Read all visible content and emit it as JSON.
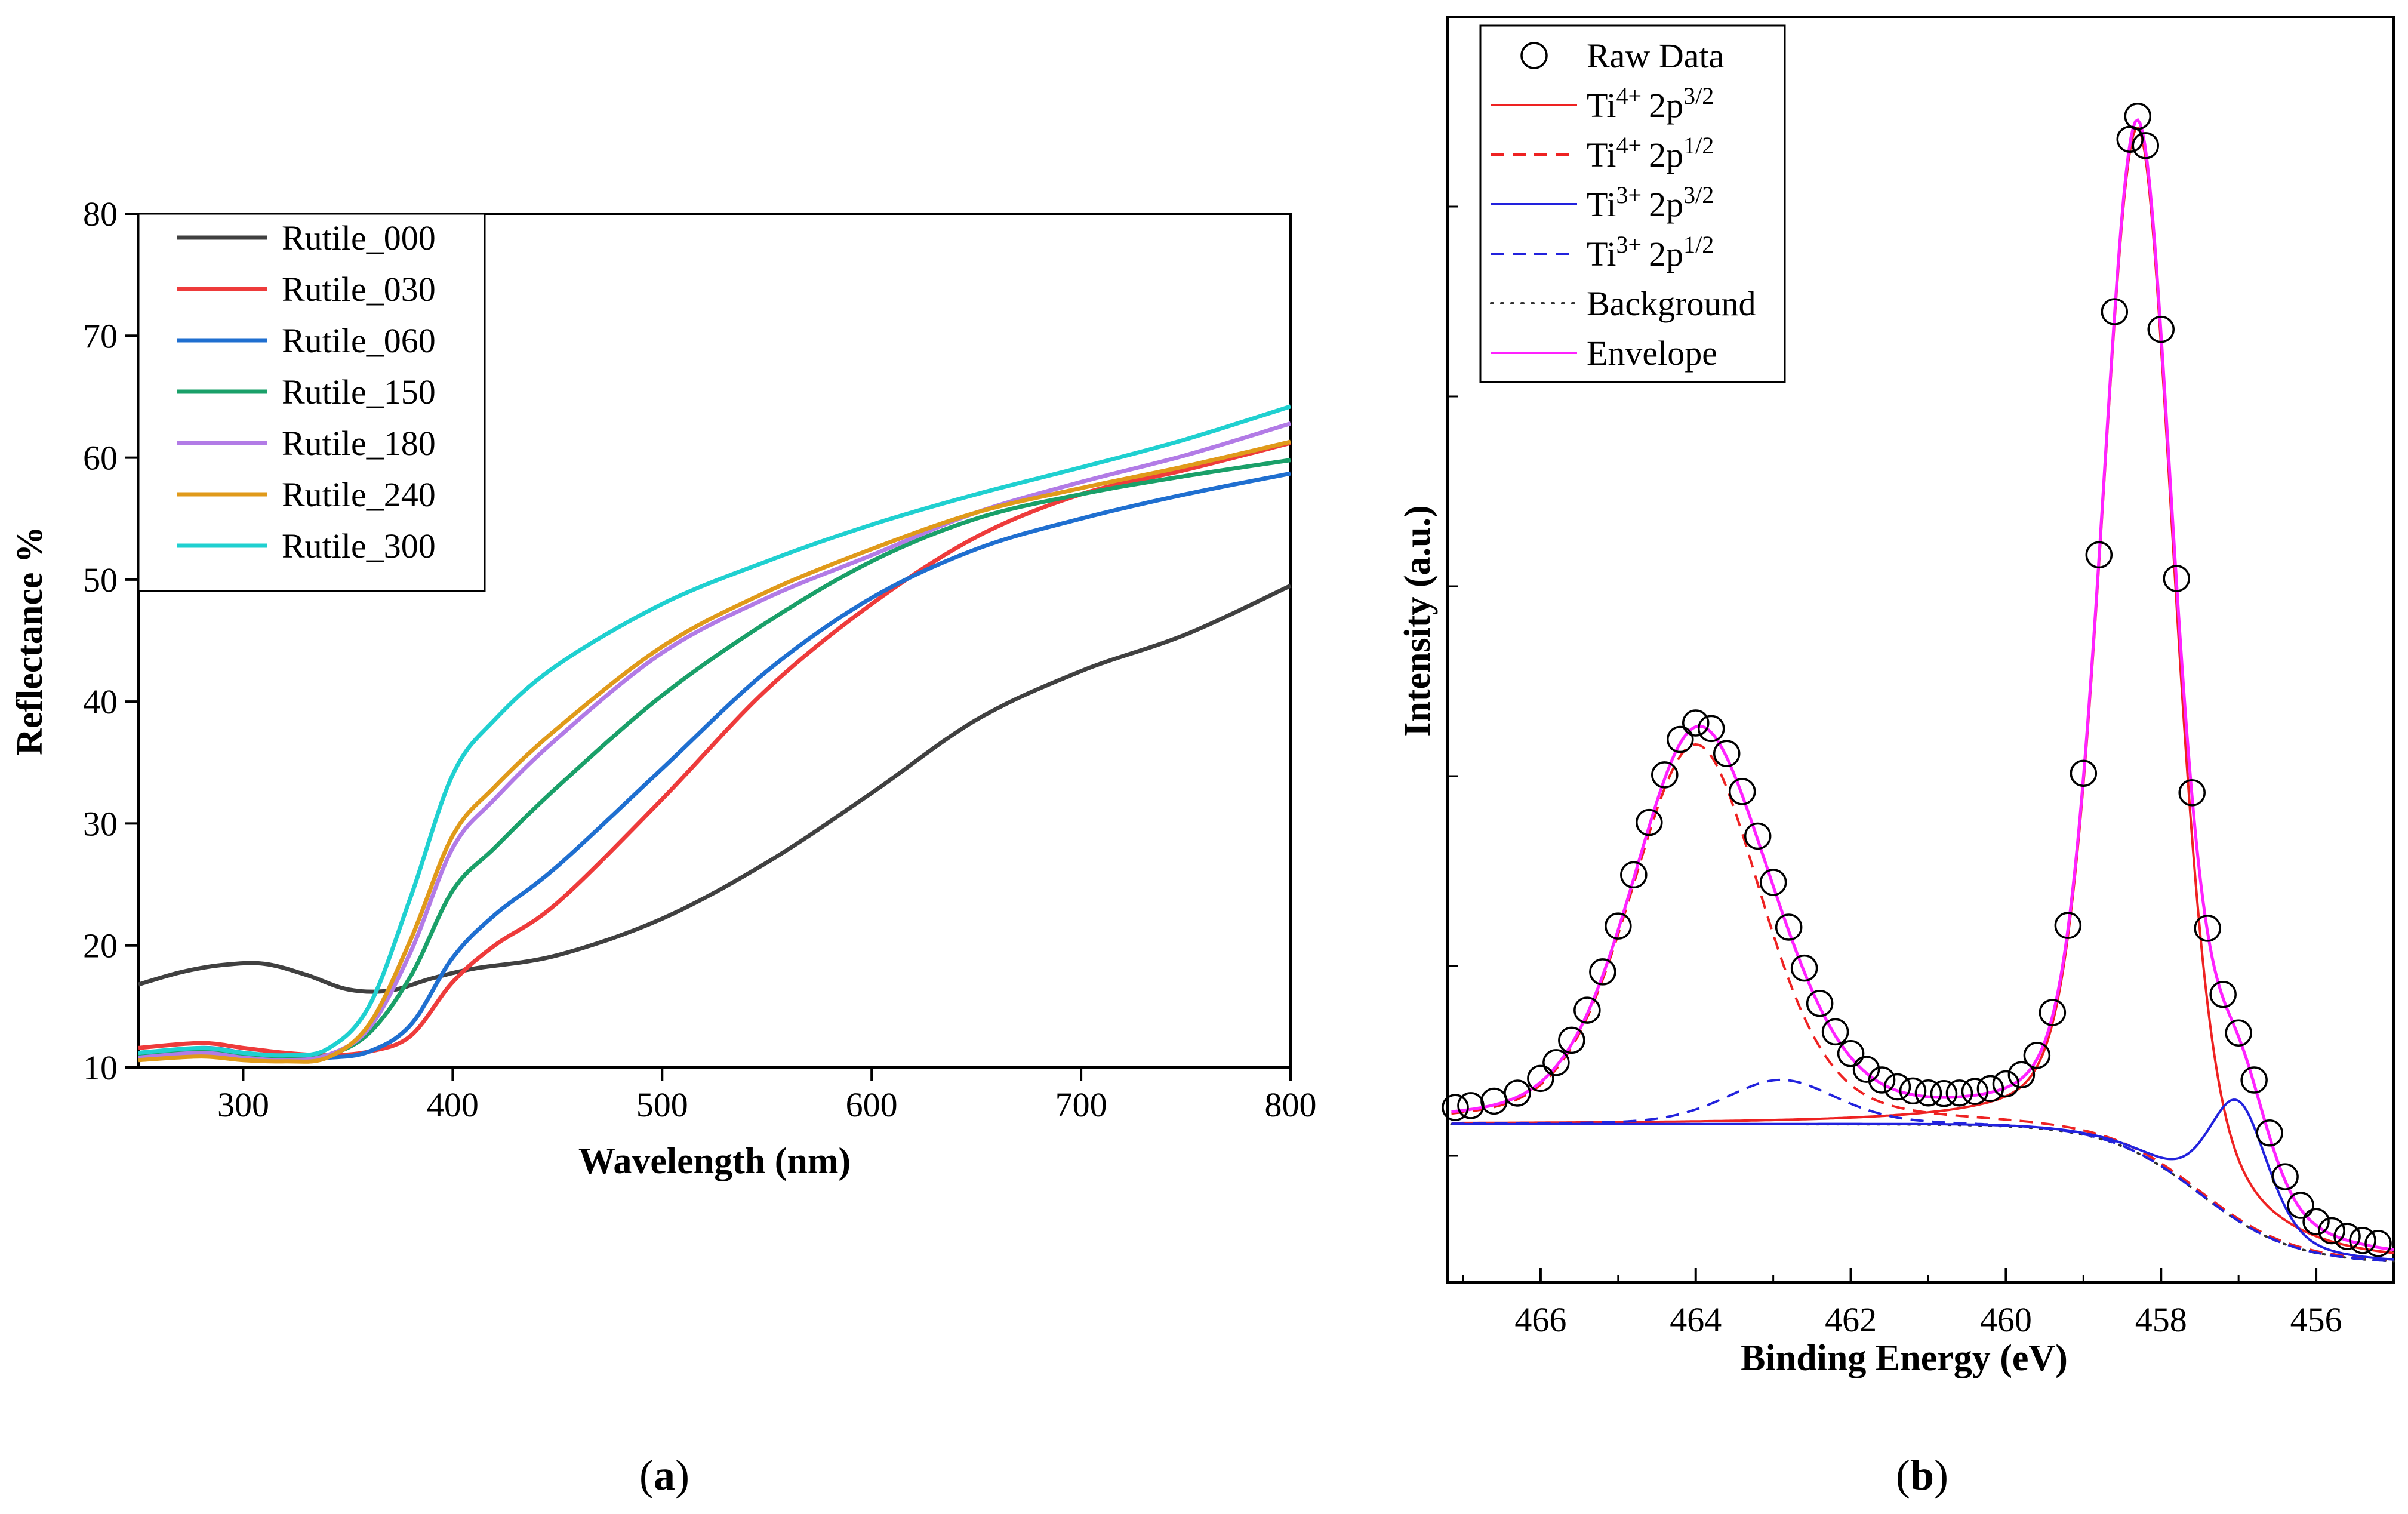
{
  "chart_data": [
    {
      "panel": "a",
      "type": "line",
      "xlabel": "Wavelength (nm)",
      "ylabel": "Reflectance %",
      "xlim": [
        250,
        800
      ],
      "ylim": [
        10,
        80
      ],
      "xticks": [
        300,
        400,
        500,
        600,
        700,
        800
      ],
      "yticks": [
        10,
        20,
        30,
        40,
        50,
        60,
        70,
        80
      ],
      "legend_position": "top-left",
      "series": [
        {
          "name": "Rutile_000",
          "color": "#404040",
          "x": [
            250,
            270,
            290,
            310,
            330,
            350,
            370,
            390,
            410,
            450,
            500,
            550,
            600,
            650,
            700,
            750,
            800
          ],
          "y": [
            16.8,
            17.8,
            18.4,
            18.5,
            17.6,
            16.4,
            16.3,
            17.3,
            18.1,
            19.2,
            22.2,
            26.8,
            32.5,
            38.5,
            42.5,
            45.5,
            49.5
          ]
        },
        {
          "name": "Rutile_030",
          "color": "#ee3b3b",
          "x": [
            250,
            280,
            300,
            320,
            340,
            360,
            380,
            400,
            420,
            450,
            500,
            550,
            600,
            650,
            700,
            750,
            800
          ],
          "y": [
            11.6,
            12.0,
            11.6,
            11.2,
            11.0,
            11.3,
            12.6,
            17.0,
            20.0,
            23.5,
            32.0,
            41.0,
            48.0,
            53.5,
            57.0,
            59.0,
            61.2
          ]
        },
        {
          "name": "Rutile_060",
          "color": "#1f6fd0",
          "x": [
            250,
            280,
            300,
            320,
            340,
            360,
            380,
            400,
            420,
            450,
            500,
            550,
            600,
            650,
            700,
            750,
            800
          ],
          "y": [
            11.0,
            11.6,
            11.2,
            10.8,
            10.8,
            11.3,
            13.5,
            19.0,
            22.5,
            26.5,
            34.5,
            42.5,
            48.5,
            52.5,
            55.0,
            57.0,
            58.7
          ]
        },
        {
          "name": "Rutile_150",
          "color": "#1aa069",
          "x": [
            250,
            280,
            300,
            320,
            340,
            360,
            380,
            400,
            420,
            450,
            500,
            550,
            600,
            650,
            700,
            750,
            800
          ],
          "y": [
            11.0,
            11.4,
            11.0,
            10.8,
            11.0,
            12.8,
            17.5,
            24.5,
            28.0,
            33.0,
            40.5,
            46.5,
            51.5,
            55.0,
            57.0,
            58.5,
            59.8
          ]
        },
        {
          "name": "Rutile_180",
          "color": "#b27be6",
          "x": [
            250,
            280,
            300,
            320,
            340,
            360,
            380,
            400,
            420,
            450,
            500,
            550,
            600,
            650,
            700,
            750,
            800
          ],
          "y": [
            10.8,
            11.2,
            10.8,
            10.6,
            11.0,
            13.2,
            19.5,
            28.0,
            32.0,
            37.0,
            44.0,
            48.5,
            52.0,
            55.5,
            58.0,
            60.2,
            62.8
          ]
        },
        {
          "name": "Rutile_240",
          "color": "#e09a1a",
          "x": [
            250,
            280,
            300,
            320,
            340,
            360,
            380,
            400,
            420,
            450,
            500,
            550,
            600,
            650,
            700,
            750,
            800
          ],
          "y": [
            10.6,
            10.9,
            10.6,
            10.5,
            10.8,
            13.5,
            20.5,
            29.0,
            33.0,
            37.8,
            44.5,
            49.0,
            52.5,
            55.5,
            57.5,
            59.3,
            61.3
          ]
        },
        {
          "name": "Rutile_300",
          "color": "#1fd0d0",
          "x": [
            250,
            280,
            300,
            320,
            340,
            360,
            380,
            400,
            420,
            450,
            500,
            550,
            600,
            650,
            700,
            750,
            800
          ],
          "y": [
            11.2,
            11.6,
            11.2,
            11.0,
            11.5,
            15.0,
            24.0,
            34.0,
            38.5,
            43.0,
            48.0,
            51.5,
            54.5,
            57.0,
            59.2,
            61.5,
            64.2
          ]
        }
      ]
    },
    {
      "panel": "b",
      "type": "line",
      "xlabel": "Binding Energy (eV)",
      "ylabel": "Intensity (a.u.)",
      "xlim": [
        467.2,
        455.0
      ],
      "ylim": [
        0,
        100
      ],
      "xticks": [
        466,
        464,
        462,
        460,
        458,
        456
      ],
      "legend_position": "top-left",
      "legend": [
        {
          "label": "Raw Data",
          "style": "circle",
          "color": "#000000"
        },
        {
          "label": "Ti4+ 2p3/2",
          "label_main": "Ti",
          "label_ion": "4+",
          "label_orb": "2p",
          "label_j": "3/2",
          "style": "solid",
          "color": "#ee2222"
        },
        {
          "label": "Ti4+ 2p1/2",
          "label_main": "Ti",
          "label_ion": "4+",
          "label_orb": "2p",
          "label_j": "1/2",
          "style": "dashed",
          "color": "#ee2222"
        },
        {
          "label": "Ti3+ 2p3/2",
          "label_main": "Ti",
          "label_ion": "3+",
          "label_orb": "2p",
          "label_j": "3/2",
          "style": "solid",
          "color": "#2222dd"
        },
        {
          "label": "Ti3+ 2p1/2",
          "label_main": "Ti",
          "label_ion": "3+",
          "label_orb": "2p",
          "label_j": "1/2",
          "style": "dashed",
          "color": "#2222dd"
        },
        {
          "label": "Background",
          "style": "dotted",
          "color": "#333333"
        },
        {
          "label": "Envelope",
          "style": "solid",
          "color": "#ff22ff"
        }
      ],
      "model": {
        "background": {
          "y_high_be": 12.5,
          "y_low_be": 1.5,
          "center": 457.5,
          "width": 0.6
        },
        "peaks": [
          {
            "name": "Ti4+ 2p3/2",
            "center": 458.3,
            "height": 81,
            "fwhm": 1.1,
            "style": "solid",
            "color": "#ee2222"
          },
          {
            "name": "Ti4+ 2p1/2",
            "center": 464.0,
            "height": 30,
            "fwhm": 2.0,
            "style": "dashed",
            "color": "#ee2222"
          },
          {
            "name": "Ti3+ 2p3/2",
            "center": 457.0,
            "height": 9.5,
            "fwhm": 0.9,
            "style": "solid",
            "color": "#2222dd"
          },
          {
            "name": "Ti3+ 2p1/2",
            "center": 462.9,
            "height": 3.5,
            "fwhm": 1.7,
            "style": "dashed",
            "color": "#2222dd"
          }
        ],
        "envelope_color": "#ff22ff",
        "raw_points_x": [
          467.1,
          466.9,
          466.6,
          466.3,
          466.0,
          465.8,
          465.6,
          465.4,
          465.2,
          465.0,
          464.8,
          464.6,
          464.4,
          464.2,
          464.0,
          463.8,
          463.6,
          463.4,
          463.2,
          463.0,
          462.8,
          462.6,
          462.4,
          462.2,
          462.0,
          461.8,
          461.6,
          461.4,
          461.2,
          461.0,
          460.8,
          460.6,
          460.4,
          460.2,
          460.0,
          459.8,
          459.6,
          459.4,
          459.2,
          459.0,
          458.8,
          458.6,
          458.4,
          458.3,
          458.2,
          458.0,
          457.8,
          457.6,
          457.4,
          457.2,
          457.0,
          456.8,
          456.6,
          456.4,
          456.2,
          456.0,
          455.8,
          455.6,
          455.4,
          455.2
        ]
      }
    }
  ],
  "captions": {
    "a": "a",
    "b": "b"
  }
}
